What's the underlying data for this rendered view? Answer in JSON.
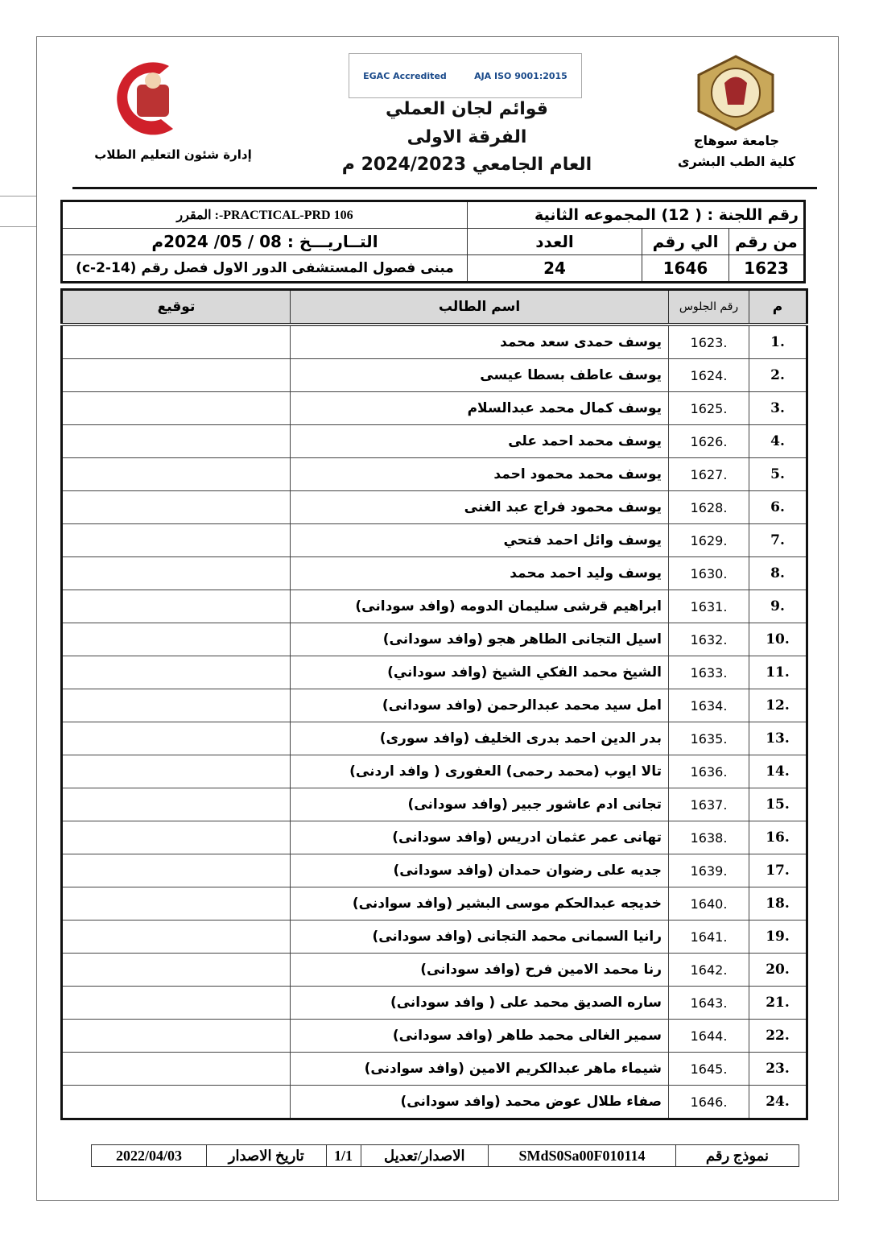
{
  "header": {
    "right_logo_text": "جامعة سوهاج",
    "right_line1": "جامعة سوهاج",
    "right_line2": "كلية الطب البشرى",
    "accreditation_logos": [
      "EGAC Accredited",
      "AJA ISO 9001:2015"
    ],
    "title1": "قوائم لجان العملي",
    "title2": "الفرقة الاولى",
    "title3": "العام الجامعي 2024/2023 م",
    "left_logo_text": "جامعة سوهاج كلية الطب",
    "left_caption": "إدارة شئون التعليم الطلاب"
  },
  "info": {
    "committee": "رقم اللجنة : ( 12) المجموعه الثانية",
    "course": "PRACTICAL-PRD 106-: المقرر",
    "from_label": "من رقم",
    "to_label": "الي رقم",
    "count_label": "العدد",
    "date": "التــاريـــخ :  08 / 05/ 2024م",
    "from": "1623",
    "to": "1646",
    "count": "24",
    "location": "مبنى فصول المستشفى الدور الاول فصل رقم (14-2-c)"
  },
  "columns": {
    "num": "م",
    "seat": "رقم الجلوس",
    "name": "اسم الطالب",
    "sign": "توقيع"
  },
  "students": [
    {
      "n": ".1",
      "seat": "1623.",
      "name": "يوسف حمدى سعد محمد"
    },
    {
      "n": ".2",
      "seat": "1624.",
      "name": "يوسف عاطف بسطا عيسى"
    },
    {
      "n": ".3",
      "seat": "1625.",
      "name": "يوسف كمال محمد عبدالسلام"
    },
    {
      "n": ".4",
      "seat": "1626.",
      "name": "يوسف محمد احمد على"
    },
    {
      "n": ".5",
      "seat": "1627.",
      "name": "يوسف محمد محمود احمد"
    },
    {
      "n": ".6",
      "seat": "1628.",
      "name": "يوسف محمود فراج عبد الغنى"
    },
    {
      "n": ".7",
      "seat": "1629.",
      "name": "يوسف وائل احمد فتحي"
    },
    {
      "n": ".8",
      "seat": "1630.",
      "name": "يوسف وليد احمد محمد"
    },
    {
      "n": ".9",
      "seat": "1631.",
      "name": "ابراهيم قرشى سليمان الدومه (وافد سودانى)"
    },
    {
      "n": ".10",
      "seat": "1632.",
      "name": "اسيل التجانى الطاهر هجو (وافد سودانى)"
    },
    {
      "n": ".11",
      "seat": "1633.",
      "name": "الشيخ محمد الفكي الشيخ (وافد سوداني)"
    },
    {
      "n": ".12",
      "seat": "1634.",
      "name": "امل سيد محمد عبدالرحمن (وافد سودانى)"
    },
    {
      "n": ".13",
      "seat": "1635.",
      "name": "بدر الدين احمد بدرى الخليف (وافد سورى)"
    },
    {
      "n": ".14",
      "seat": "1636.",
      "name": "تالا ايوب (محمد رحمى) العفورى ( وافد اردنى)"
    },
    {
      "n": ".15",
      "seat": "1637.",
      "name": "تجانى ادم عاشور جبير (وافد سودانى)"
    },
    {
      "n": ".16",
      "seat": "1638.",
      "name": "تهانى عمر عثمان ادريس (وافد سودانى)"
    },
    {
      "n": ".17",
      "seat": "1639.",
      "name": "جديه على رضوان حمدان (وافد سودانى)"
    },
    {
      "n": ".18",
      "seat": "1640.",
      "name": "خديجه عبدالحكم موسى البشير (وافد سوادنى)"
    },
    {
      "n": ".19",
      "seat": "1641.",
      "name": "رانيا السمانى محمد التجانى (وافد سودانى)"
    },
    {
      "n": ".20",
      "seat": "1642.",
      "name": "رنا محمد الامين فرح (وافد سودانى)"
    },
    {
      "n": ".21",
      "seat": "1643.",
      "name": "ساره الصديق محمد على ( وافد سودانى)"
    },
    {
      "n": ".22",
      "seat": "1644.",
      "name": "سمير الغالى محمد طاهر (وافد سودانى)"
    },
    {
      "n": ".23",
      "seat": "1645.",
      "name": "شيماء ماهر عبدالكريم الامين (وافد سوادنى)"
    },
    {
      "n": ".24",
      "seat": "1646.",
      "name": "صفاء طلال عوض محمد (وافد سودانى)"
    }
  ],
  "footer": {
    "form_label": "نموذج رقم",
    "form_no": "SMdS0Sa00F010114",
    "version_label": "الاصدار/تعديل",
    "version": "1/1",
    "issue_label": "تاريخ الاصدار",
    "issue_date": "2022/04/03"
  }
}
